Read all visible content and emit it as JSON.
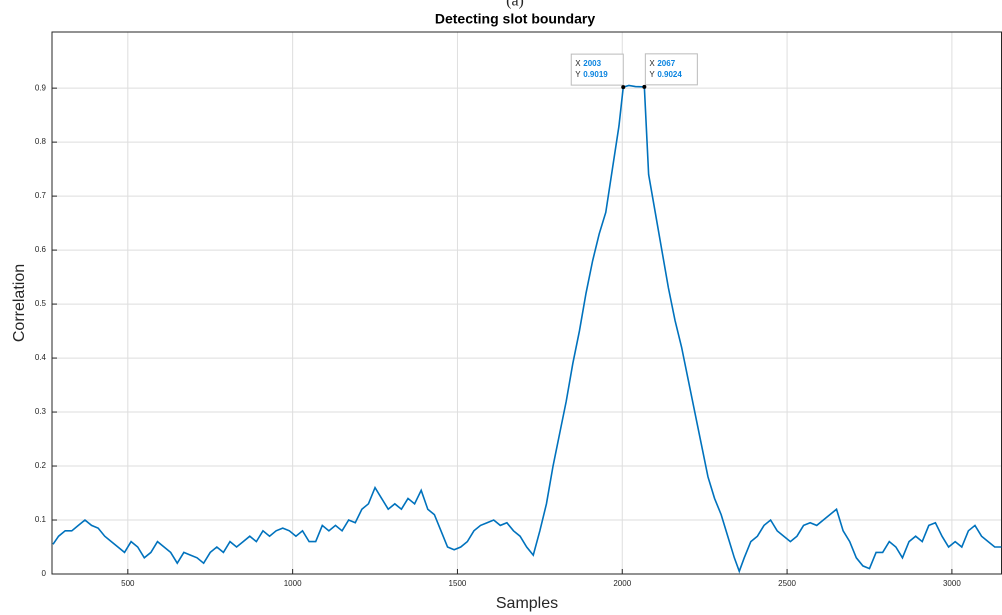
{
  "chart_data": {
    "type": "line",
    "subtitle": "(a)",
    "title": "Detecting slot boundary",
    "xlabel": "Samples",
    "ylabel": "Correlation",
    "xlim": [
      270,
      3152
    ],
    "ylim": [
      0,
      1.004
    ],
    "xticks": [
      500,
      1000,
      1500,
      2000,
      2500,
      3000
    ],
    "yticks": [
      0,
      0.1,
      0.2,
      0.3,
      0.4,
      0.5,
      0.6,
      0.7,
      0.8,
      0.9
    ],
    "grid": true,
    "x": [
      273,
      290,
      310,
      330,
      350,
      370,
      390,
      410,
      430,
      450,
      470,
      490,
      510,
      530,
      550,
      570,
      590,
      610,
      630,
      650,
      670,
      690,
      710,
      730,
      750,
      770,
      790,
      810,
      830,
      850,
      870,
      890,
      910,
      930,
      950,
      970,
      990,
      1010,
      1030,
      1050,
      1070,
      1090,
      1110,
      1130,
      1150,
      1170,
      1190,
      1210,
      1230,
      1250,
      1270,
      1290,
      1310,
      1330,
      1350,
      1370,
      1390,
      1410,
      1430,
      1450,
      1470,
      1490,
      1510,
      1530,
      1550,
      1570,
      1590,
      1610,
      1630,
      1650,
      1670,
      1690,
      1710,
      1730,
      1750,
      1770,
      1790,
      1810,
      1830,
      1850,
      1870,
      1890,
      1910,
      1930,
      1950,
      1970,
      1990,
      2003,
      2020,
      2040,
      2067,
      2080,
      2100,
      2120,
      2140,
      2160,
      2180,
      2200,
      2220,
      2240,
      2260,
      2280,
      2300,
      2320,
      2340,
      2355,
      2370,
      2390,
      2410,
      2430,
      2450,
      2470,
      2490,
      2510,
      2530,
      2550,
      2570,
      2590,
      2610,
      2630,
      2650,
      2670,
      2690,
      2710,
      2730,
      2750,
      2770,
      2790,
      2810,
      2830,
      2850,
      2870,
      2890,
      2910,
      2930,
      2950,
      2970,
      2990,
      3010,
      3030,
      3050,
      3070,
      3090,
      3110,
      3130,
      3150
    ],
    "series": [
      {
        "color": "#0072bd",
        "values": [
          0.055,
          0.07,
          0.08,
          0.08,
          0.09,
          0.1,
          0.09,
          0.085,
          0.07,
          0.06,
          0.05,
          0.04,
          0.06,
          0.05,
          0.03,
          0.04,
          0.06,
          0.05,
          0.04,
          0.02,
          0.04,
          0.035,
          0.03,
          0.02,
          0.04,
          0.05,
          0.04,
          0.06,
          0.05,
          0.06,
          0.07,
          0.06,
          0.08,
          0.07,
          0.08,
          0.085,
          0.08,
          0.07,
          0.08,
          0.06,
          0.06,
          0.09,
          0.08,
          0.09,
          0.08,
          0.1,
          0.095,
          0.12,
          0.13,
          0.16,
          0.14,
          0.12,
          0.13,
          0.12,
          0.14,
          0.13,
          0.155,
          0.12,
          0.11,
          0.08,
          0.05,
          0.045,
          0.05,
          0.06,
          0.08,
          0.09,
          0.095,
          0.1,
          0.09,
          0.095,
          0.08,
          0.07,
          0.05,
          0.035,
          0.08,
          0.13,
          0.2,
          0.26,
          0.32,
          0.39,
          0.45,
          0.52,
          0.58,
          0.63,
          0.67,
          0.75,
          0.83,
          0.9019,
          0.905,
          0.903,
          0.9024,
          0.74,
          0.67,
          0.6,
          0.53,
          0.47,
          0.42,
          0.36,
          0.3,
          0.24,
          0.18,
          0.14,
          0.11,
          0.07,
          0.03,
          0.005,
          0.03,
          0.06,
          0.07,
          0.09,
          0.1,
          0.08,
          0.07,
          0.06,
          0.07,
          0.09,
          0.095,
          0.09,
          0.1,
          0.11,
          0.12,
          0.08,
          0.06,
          0.03,
          0.015,
          0.01,
          0.04,
          0.04,
          0.06,
          0.05,
          0.03,
          0.06,
          0.07,
          0.06,
          0.09,
          0.095,
          0.07,
          0.05,
          0.06,
          0.05,
          0.08,
          0.09,
          0.07,
          0.06,
          0.05,
          0.05
        ]
      }
    ],
    "datatip_labels": [
      "X",
      "Y"
    ],
    "datatips": [
      {
        "x": 2003,
        "y": 0.9019
      },
      {
        "x": 2067,
        "y": 0.9024
      }
    ]
  }
}
